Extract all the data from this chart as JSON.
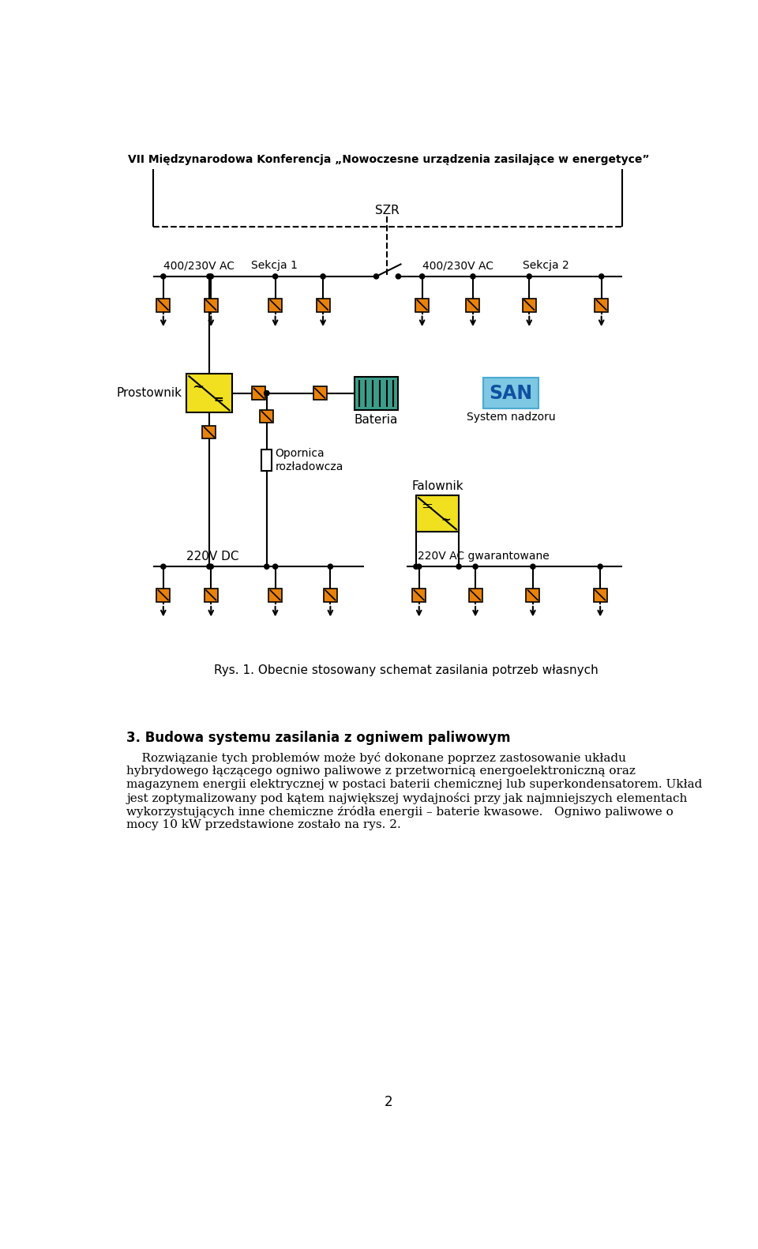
{
  "title": "VII Międzynarodowa Konferencja „Nowoczesne urządzenia zasilające w energetyce”",
  "background_color": "#ffffff",
  "line_color": "#000000",
  "orange_color": "#E8820A",
  "yellow_color": "#F0E020",
  "teal_color": "#3A9E8A",
  "blue_color": "#7EC8E3",
  "section_heading": "3. Budowa systemu zasilania z ogniwem paliwowym",
  "body_lines": [
    "    Rozwiązanie tych problemów może być dokonane poprzez zastosowanie układu",
    "hybrydowego łączącego ogniwo paliwowe z przetwornicą energoelektroniczną oraz",
    "magazynem energii elektrycznej w postaci baterii chemicznej lub superkondensatorem. Układ",
    "jest zoptymalizowany pod kątem największej wydajności przy jak najmniejszych elementach",
    "wykorzystujących inne chemiczne źródła energii – baterie kwasowe.   Ogniwo paliwowe o",
    "mocy 10 kW przedstawione zostało na rys. 2."
  ],
  "caption": "Rys. 1. Obecnie stosowany schemat zasilania potrzeb własnych",
  "page_number": "2",
  "label_400_230_ac_left": "400/230V AC",
  "label_sekcja1": "Sekcja 1",
  "label_400_230_ac_right": "400/230V AC",
  "label_sekcja2": "Sekcja 2",
  "label_szr": "SZR",
  "label_prostownik": "Prostownik",
  "label_bateria": "Bateria",
  "label_system_nadzoru": "System nadzoru",
  "label_opornica": "Opornica\nrozładowcza",
  "label_falownik": "Falownik",
  "label_220vdc": "220V DC",
  "label_220vac": "220V AC gwarantowane"
}
